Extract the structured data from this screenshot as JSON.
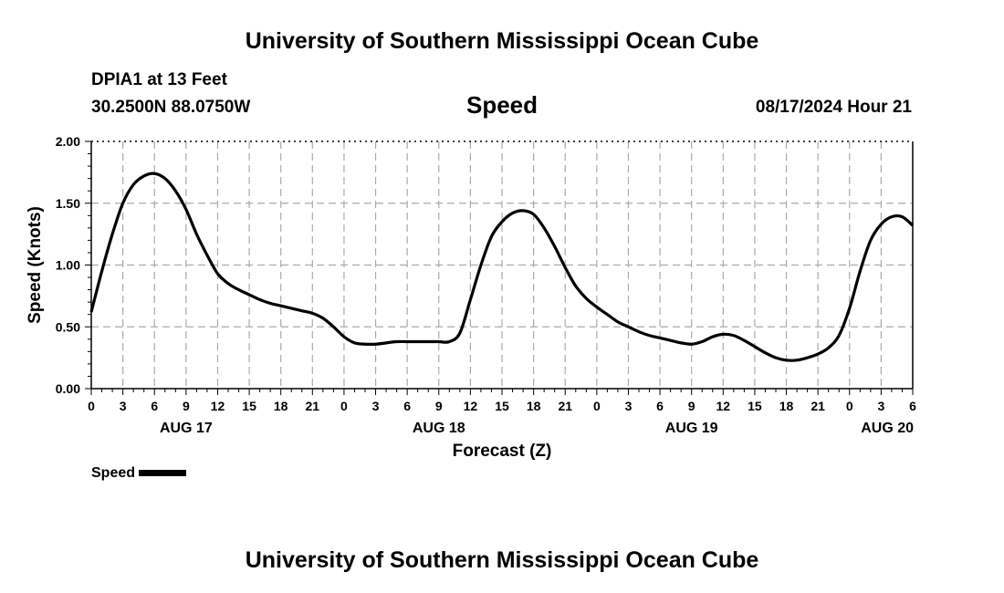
{
  "header": {
    "title": "University of Southern Mississippi Ocean Cube",
    "station": "DPIA1 at 13 Feet",
    "coords": "30.2500N  88.0750W",
    "chart_title": "Speed",
    "run_time": "08/17/2024 Hour 21"
  },
  "legend": {
    "label": "Speed"
  },
  "footer": {
    "title": "University of Southern Mississippi Ocean Cube"
  },
  "chart_data": {
    "type": "line",
    "title": "Speed",
    "xlabel": "Forecast (Z)",
    "ylabel": "Speed (Knots)",
    "ylim": [
      0,
      2.0
    ],
    "yticks": [
      "0.00",
      "0.50",
      "1.00",
      "1.50",
      "2.00"
    ],
    "xlim": [
      0,
      78
    ],
    "xtick_labels": [
      "0",
      "3",
      "6",
      "9",
      "12",
      "15",
      "18",
      "21",
      "0",
      "3",
      "6",
      "9",
      "12",
      "15",
      "18",
      "21",
      "0",
      "3",
      "6",
      "9",
      "12",
      "15",
      "18",
      "21",
      "0",
      "3",
      "6"
    ],
    "day_labels": [
      {
        "label": "AUG 17",
        "hour": 9
      },
      {
        "label": "AUG 18",
        "hour": 33
      },
      {
        "label": "AUG 19",
        "hour": 57
      },
      {
        "label": "AUG 20",
        "hour": 78
      }
    ],
    "grid": true,
    "series": [
      {
        "name": "Speed",
        "color": "#000000",
        "x": [
          0,
          1,
          2,
          3,
          4,
          5,
          6,
          7,
          8,
          9,
          10,
          11,
          12,
          13,
          14,
          15,
          16,
          17,
          18,
          19,
          20,
          21,
          22,
          23,
          24,
          25,
          26,
          27,
          28,
          29,
          30,
          31,
          32,
          33,
          34,
          35,
          36,
          37,
          38,
          39,
          40,
          41,
          42,
          43,
          44,
          45,
          46,
          47,
          48,
          49,
          50,
          51,
          52,
          53,
          54,
          55,
          56,
          57,
          58,
          59,
          60,
          61,
          62,
          63,
          64,
          65,
          66,
          67,
          68,
          69,
          70,
          71,
          72,
          73,
          74,
          75,
          76,
          77,
          78
        ],
        "values": [
          0.62,
          0.95,
          1.25,
          1.5,
          1.65,
          1.72,
          1.74,
          1.7,
          1.6,
          1.45,
          1.25,
          1.08,
          0.93,
          0.85,
          0.8,
          0.76,
          0.72,
          0.69,
          0.67,
          0.65,
          0.63,
          0.61,
          0.57,
          0.5,
          0.42,
          0.37,
          0.36,
          0.36,
          0.37,
          0.38,
          0.38,
          0.38,
          0.38,
          0.38,
          0.38,
          0.45,
          0.72,
          1.0,
          1.23,
          1.35,
          1.42,
          1.44,
          1.41,
          1.3,
          1.15,
          0.98,
          0.83,
          0.73,
          0.66,
          0.6,
          0.54,
          0.5,
          0.46,
          0.43,
          0.41,
          0.39,
          0.37,
          0.36,
          0.38,
          0.42,
          0.44,
          0.43,
          0.39,
          0.34,
          0.29,
          0.25,
          0.23,
          0.23,
          0.25,
          0.28,
          0.33,
          0.43,
          0.65,
          0.95,
          1.2,
          1.33,
          1.39,
          1.39,
          1.32
        ]
      }
    ]
  }
}
